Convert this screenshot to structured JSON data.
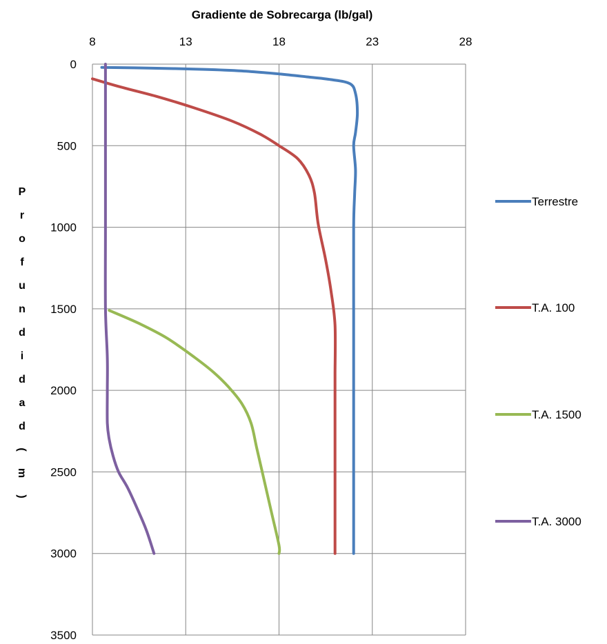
{
  "chart_data": {
    "type": "line",
    "title": "Gradiente de Sobrecarga (lb/gal)",
    "xlabel": "Gradiente de Sobrecarga (lb/gal)",
    "ylabel": "Profundidad (m)",
    "xlim": [
      8,
      28
    ],
    "ylim": [
      0,
      3500
    ],
    "x_axis_position": "top",
    "y_axis_inverted": true,
    "x_ticks": [
      8,
      13,
      18,
      23,
      28
    ],
    "y_ticks": [
      0,
      500,
      1000,
      1500,
      2000,
      2500,
      3000,
      3500
    ],
    "grid": true,
    "legend_position": "right",
    "series": [
      {
        "name": "Terrestre",
        "color": "#4a7ebb",
        "points": [
          [
            8.5,
            20
          ],
          [
            11,
            24
          ],
          [
            14,
            32
          ],
          [
            16,
            42
          ],
          [
            18,
            60
          ],
          [
            19.5,
            78
          ],
          [
            20.8,
            95
          ],
          [
            21.8,
            120
          ],
          [
            22.1,
            180
          ],
          [
            22.2,
            300
          ],
          [
            22.1,
            420
          ],
          [
            22.0,
            500
          ],
          [
            22.1,
            650
          ],
          [
            22.05,
            800
          ],
          [
            22.0,
            1000
          ],
          [
            22.0,
            1500
          ],
          [
            22.0,
            2000
          ],
          [
            22.0,
            2500
          ],
          [
            22.0,
            3000
          ]
        ]
      },
      {
        "name": "T.A. 100",
        "color": "#be4b48",
        "points": [
          [
            8.0,
            90
          ],
          [
            9.5,
            140
          ],
          [
            11.5,
            200
          ],
          [
            13.5,
            270
          ],
          [
            15.5,
            350
          ],
          [
            17,
            430
          ],
          [
            18,
            500
          ],
          [
            19,
            580
          ],
          [
            19.6,
            680
          ],
          [
            19.9,
            790
          ],
          [
            20.1,
            980
          ],
          [
            20.5,
            1200
          ],
          [
            20.8,
            1400
          ],
          [
            21.0,
            1600
          ],
          [
            21.0,
            1900
          ],
          [
            21.0,
            2000
          ],
          [
            21.0,
            2500
          ],
          [
            21.0,
            3000
          ]
        ]
      },
      {
        "name": "T.A. 1500",
        "color": "#98b954",
        "points": [
          [
            8.9,
            1510
          ],
          [
            10.5,
            1590
          ],
          [
            12,
            1680
          ],
          [
            13.5,
            1800
          ],
          [
            14.5,
            1890
          ],
          [
            15.3,
            1980
          ],
          [
            16,
            2080
          ],
          [
            16.5,
            2200
          ],
          [
            16.8,
            2350
          ],
          [
            17.2,
            2550
          ],
          [
            17.6,
            2750
          ],
          [
            18.0,
            2950
          ],
          [
            18.0,
            3000
          ]
        ]
      },
      {
        "name": "T.A. 3000",
        "color": "#7d60a0",
        "points": [
          [
            8.7,
            0
          ],
          [
            8.7,
            500
          ],
          [
            8.7,
            1000
          ],
          [
            8.7,
            1500
          ],
          [
            8.8,
            1800
          ],
          [
            8.8,
            2000
          ],
          [
            8.8,
            2200
          ],
          [
            8.9,
            2300
          ],
          [
            9.1,
            2400
          ],
          [
            9.4,
            2500
          ],
          [
            9.9,
            2600
          ],
          [
            10.5,
            2750
          ],
          [
            10.9,
            2860
          ],
          [
            11.3,
            3000
          ]
        ]
      }
    ]
  }
}
